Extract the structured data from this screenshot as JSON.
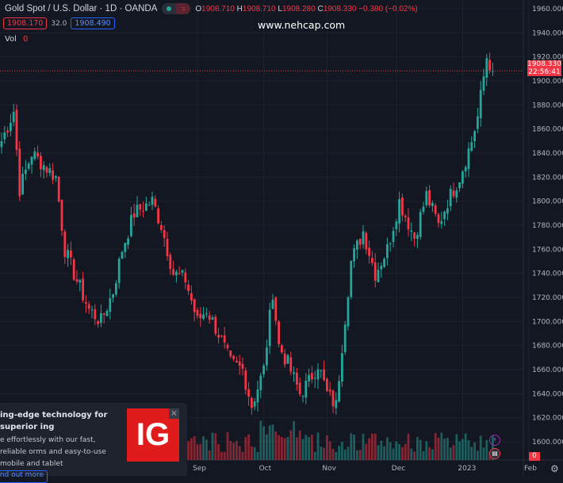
{
  "header": {
    "symbol_title": "Gold Spot / U.S. Dollar · 1D · OANDA",
    "o_label": "O",
    "o": "1908.710",
    "h_label": "H",
    "h": "1908.710",
    "l_label": "L",
    "l": "1908.280",
    "c_label": "C",
    "c": "1908.330",
    "change": "−0.380 (−0.02%)",
    "bid": "1908.170",
    "spread": "32.0",
    "ask": "1908.490",
    "vol_label": "Vol",
    "vol_value": "0"
  },
  "watermark": "www.nehcap.com",
  "price_tag": {
    "price": "1908.330",
    "countdown": "22:56:41"
  },
  "volume_tag": "0",
  "ad": {
    "headline": "ing-edge technology for superior ing",
    "body": "e effortlessly with our fast, reliable orms and easy-to-use mobile and tablet",
    "logo": "IG",
    "close": "×",
    "button": "nd out more"
  },
  "colors": {
    "up": "#26a69a",
    "down": "#f23645",
    "bg": "#131722"
  },
  "chart_data": {
    "type": "candlestick",
    "title": "Gold Spot / U.S. Dollar · 1D · OANDA",
    "y_ticks": [
      "1960.000",
      "1940.000",
      "1920.000",
      "1900.000",
      "1880.000",
      "1860.000",
      "1840.000",
      "1820.000",
      "1800.000",
      "1780.000",
      "1760.000",
      "1740.000",
      "1720.000",
      "1700.000",
      "1680.000",
      "1660.000",
      "1640.000",
      "1620.000",
      "1600.000"
    ],
    "ylim": [
      1595,
      1962
    ],
    "x_ticks": [
      {
        "label": "Sep",
        "bar": 65
      },
      {
        "label": "Oct",
        "bar": 87
      },
      {
        "label": "Nov",
        "bar": 108
      },
      {
        "label": "Dec",
        "bar": 131
      },
      {
        "label": "2023",
        "bar": 153
      },
      {
        "label": "Feb",
        "bar": 175
      }
    ],
    "close_path": [
      [
        0,
        1850
      ],
      [
        4,
        1875
      ],
      [
        6,
        1810
      ],
      [
        10,
        1840
      ],
      [
        18,
        1820
      ],
      [
        21,
        1760
      ],
      [
        24,
        1740
      ],
      [
        29,
        1710
      ],
      [
        33,
        1700
      ],
      [
        37,
        1725
      ],
      [
        40,
        1760
      ],
      [
        44,
        1790
      ],
      [
        50,
        1800
      ],
      [
        53,
        1780
      ],
      [
        57,
        1740
      ],
      [
        61,
        1735
      ],
      [
        65,
        1700
      ],
      [
        68,
        1710
      ],
      [
        72,
        1690
      ],
      [
        76,
        1665
      ],
      [
        80,
        1660
      ],
      [
        83,
        1630
      ],
      [
        87,
        1660
      ],
      [
        90,
        1725
      ],
      [
        92,
        1680
      ],
      [
        95,
        1665
      ],
      [
        99,
        1640
      ],
      [
        102,
        1650
      ],
      [
        105,
        1665
      ],
      [
        108,
        1640
      ],
      [
        111,
        1630
      ],
      [
        113,
        1680
      ],
      [
        116,
        1750
      ],
      [
        120,
        1775
      ],
      [
        124,
        1740
      ],
      [
        128,
        1760
      ],
      [
        132,
        1800
      ],
      [
        137,
        1770
      ],
      [
        141,
        1805
      ],
      [
        145,
        1780
      ],
      [
        148,
        1800
      ],
      [
        152,
        1820
      ],
      [
        156,
        1850
      ],
      [
        158,
        1870
      ],
      [
        161,
        1920
      ],
      [
        163,
        1908.33
      ]
    ],
    "last_close": 1908.33
  }
}
